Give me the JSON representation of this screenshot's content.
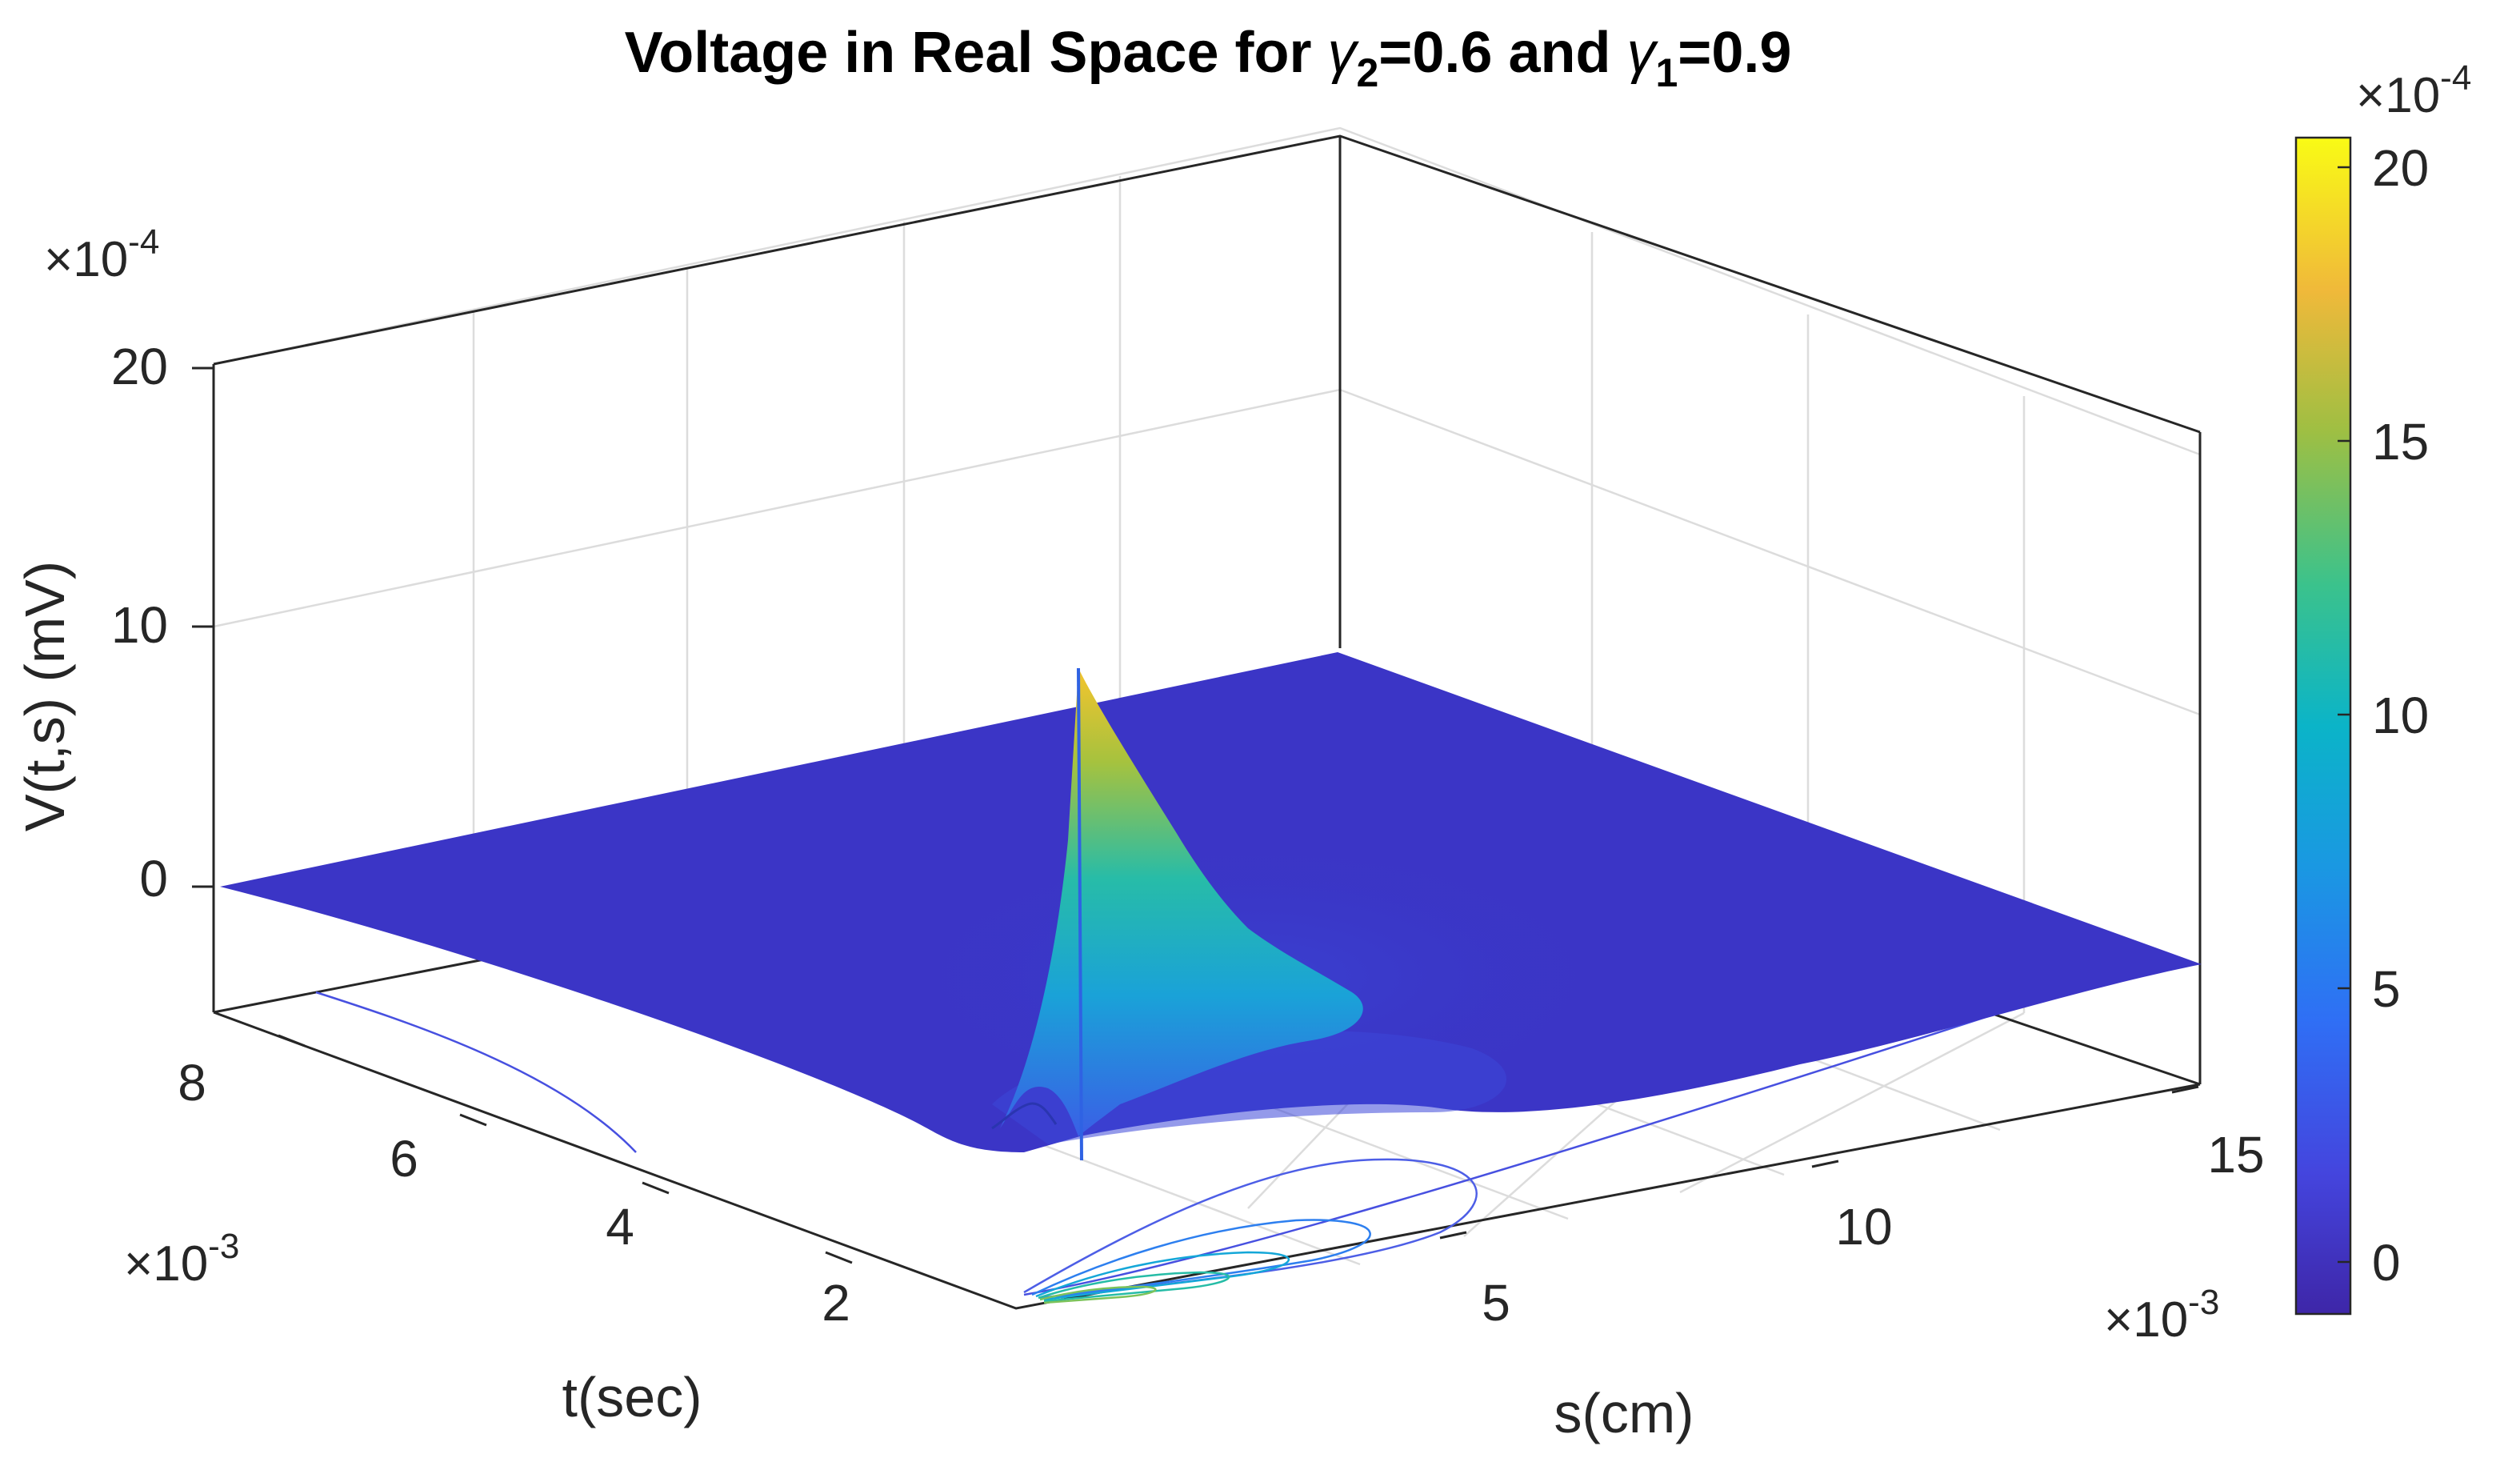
{
  "chart_data": {
    "type": "surface",
    "title": {
      "prefix": "Voltage in Real Space for ",
      "sym_a": "γ",
      "sub_a": "2",
      "eq_a": "=0.6 and ",
      "sym_b": "γ",
      "sub_b": "1",
      "eq_b": "=0.9"
    },
    "xlabel": "s(cm)",
    "ylabel": "t(sec)",
    "zlabel": "V(t,s) (mV)",
    "x_multiplier": "×10-3",
    "x_multiplier_base": "×10",
    "x_multiplier_exp": "-3",
    "y_multiplier_base": "×10",
    "y_multiplier_exp": "-3",
    "z_multiplier_base": "×10",
    "z_multiplier_exp": "-4",
    "colorbar_multiplier_base": "×10",
    "colorbar_multiplier_exp": "-4",
    "xlim": [
      0,
      16
    ],
    "ylim": [
      0,
      9
    ],
    "zlim": [
      -5,
      20
    ],
    "x_ticks": [
      5,
      10,
      15
    ],
    "x_ticklabels": [
      "5",
      "10",
      "15"
    ],
    "y_ticks": [
      2,
      4,
      6,
      8
    ],
    "y_ticklabels": [
      "2",
      "4",
      "6",
      "8"
    ],
    "z_ticks": [
      0,
      10,
      20
    ],
    "z_ticklabels": [
      "0",
      "10",
      "20"
    ],
    "colorbar": {
      "colormap": "parula",
      "range": [
        -1,
        20.5
      ],
      "ticks": [
        0,
        5,
        10,
        15,
        20
      ],
      "ticklabels": [
        "0",
        "5",
        "10",
        "15",
        "20"
      ]
    },
    "grid": true,
    "peak": {
      "s": 4.2,
      "t": 0,
      "V": 19.5
    },
    "surface_base_level": 0,
    "contour_levels": [
      0.5,
      3,
      6,
      9,
      12
    ],
    "colors": {
      "low": "#3d26a8",
      "mid": "#1fbfb8",
      "high": "#f9fb0e",
      "surface": "#3b34c4"
    }
  }
}
